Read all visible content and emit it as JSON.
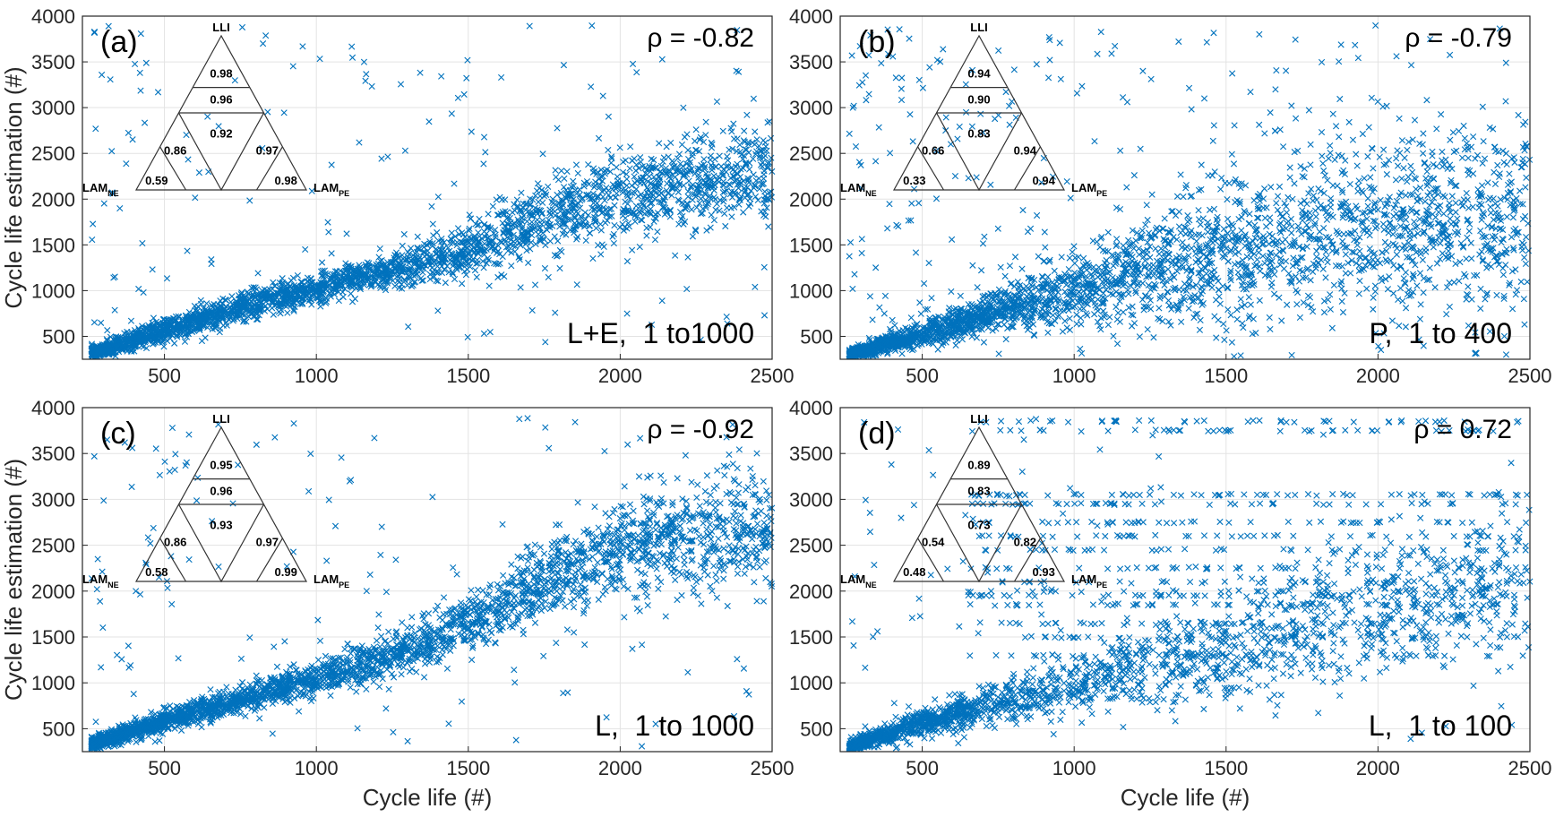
{
  "colors": {
    "marker": "#0072BD",
    "grid": "#e3e3e3",
    "axis": "#262626"
  },
  "chart_data": [
    {
      "type": "scatter",
      "panel": "(a)",
      "rho": "ρ = -0.82",
      "condition": "L+E,  1 to1000",
      "xlabel": "",
      "ylabel": "Cycle life estimation (#)",
      "xlim": [
        230,
        2500
      ],
      "ylim": [
        250,
        4000
      ],
      "xticks": [
        500,
        1000,
        1500,
        2000,
        2500
      ],
      "yticks": [
        500,
        1000,
        1500,
        2000,
        2500,
        3000,
        3500,
        4000
      ],
      "trend": {
        "points": [
          [
            260,
            320
          ],
          [
            500,
            560
          ],
          [
            750,
            820
          ],
          [
            1000,
            1030
          ],
          [
            1250,
            1230
          ],
          [
            1500,
            1420
          ],
          [
            1750,
            1800
          ],
          [
            2000,
            2050
          ],
          [
            2500,
            2300
          ]
        ],
        "spread": [
          60,
          120,
          140,
          150,
          180,
          260,
          380,
          450,
          500
        ],
        "outlier_frac": 0.06,
        "n": 3000
      },
      "triangle": {
        "title": "LLI",
        "left": "LAM",
        "left_sub": "NE",
        "right": "LAM",
        "right_sub": "PE",
        "values": {
          "top1": "0.98",
          "top2": "0.96",
          "center": "0.92",
          "left_inner": "0.86",
          "right_inner": "0.97",
          "left_corner": "0.59",
          "right_corner": "0.98"
        }
      }
    },
    {
      "type": "scatter",
      "panel": "(b)",
      "rho": "ρ = -0.79",
      "condition": "P,  1 to 400",
      "xlabel": "",
      "ylabel": "",
      "xlim": [
        230,
        2500
      ],
      "ylim": [
        250,
        4000
      ],
      "xticks": [
        500,
        1000,
        1500,
        2000,
        2500
      ],
      "yticks": [
        500,
        1000,
        1500,
        2000,
        2500,
        3000,
        3500,
        4000
      ],
      "trend": {
        "points": [
          [
            260,
            300
          ],
          [
            500,
            520
          ],
          [
            750,
            780
          ],
          [
            1000,
            1000
          ],
          [
            1250,
            1250
          ],
          [
            1500,
            1400
          ],
          [
            1750,
            1550
          ],
          [
            2000,
            1700
          ],
          [
            2500,
            1900
          ]
        ],
        "spread": [
          60,
          120,
          200,
          350,
          600,
          750,
          800,
          850,
          900
        ],
        "outlier_frac": 0.1,
        "n": 3000
      },
      "triangle": {
        "title": "LLI",
        "left": "LAM",
        "left_sub": "NE",
        "right": "LAM",
        "right_sub": "PE",
        "values": {
          "top1": "0.94",
          "top2": "0.90",
          "center": "0.83",
          "left_inner": "0.66",
          "right_inner": "0.94",
          "left_corner": "0.33",
          "right_corner": "0.94"
        }
      }
    },
    {
      "type": "scatter",
      "panel": "(c)",
      "rho": "ρ = -0.92",
      "condition": "L,  1 to 1000",
      "xlabel": "Cycle life (#)",
      "ylabel": "Cycle life estimation (#)",
      "xlim": [
        230,
        2500
      ],
      "ylim": [
        250,
        4000
      ],
      "xticks": [
        500,
        1000,
        1500,
        2000,
        2500
      ],
      "yticks": [
        500,
        1000,
        1500,
        2000,
        2500,
        3000,
        3500,
        4000
      ],
      "trend": {
        "points": [
          [
            260,
            330
          ],
          [
            500,
            580
          ],
          [
            750,
            830
          ],
          [
            1000,
            1050
          ],
          [
            1250,
            1300
          ],
          [
            1500,
            1650
          ],
          [
            1750,
            2100
          ],
          [
            2000,
            2500
          ],
          [
            2500,
            2700
          ]
        ],
        "spread": [
          60,
          110,
          130,
          160,
          220,
          300,
          420,
          500,
          550
        ],
        "outlier_frac": 0.06,
        "n": 3000
      },
      "triangle": {
        "title": "LLI",
        "left": "LAM",
        "left_sub": "NE",
        "right": "LAM",
        "right_sub": "PE",
        "values": {
          "top1": "0.95",
          "top2": "0.96",
          "center": "0.93",
          "left_inner": "0.86",
          "right_inner": "0.97",
          "left_corner": "0.58",
          "right_corner": "0.99"
        }
      }
    },
    {
      "type": "scatter",
      "panel": "(d)",
      "rho": "ρ = 0.72",
      "condition": "L,  1 to 100",
      "xlabel": "Cycle life (#)",
      "ylabel": "",
      "xlim": [
        230,
        2500
      ],
      "ylim": [
        250,
        4000
      ],
      "xticks": [
        500,
        1000,
        1500,
        2000,
        2500
      ],
      "yticks": [
        500,
        1000,
        1500,
        2000,
        2500,
        3000,
        3500,
        4000
      ],
      "trend": {
        "points": [
          [
            260,
            300
          ],
          [
            500,
            560
          ],
          [
            750,
            800
          ],
          [
            1000,
            1000
          ],
          [
            1250,
            1150
          ],
          [
            1500,
            1300
          ],
          [
            1750,
            1500
          ],
          [
            2000,
            1800
          ],
          [
            2500,
            2100
          ]
        ],
        "spread": [
          60,
          130,
          200,
          300,
          400,
          500,
          600,
          700,
          800
        ],
        "outlier_frac": 0.05,
        "n": 2600
      },
      "bands": [
        3850,
        3750,
        3050,
        2950,
        2750,
        2600,
        2450,
        2250,
        2100,
        2000,
        1950,
        1850,
        1650,
        1500,
        1300
      ],
      "triangle": {
        "title": "LLI",
        "left": "LAM",
        "left_sub": "NE",
        "right": "LAM",
        "right_sub": "PE",
        "values": {
          "top1": "0.89",
          "top2": "0.83",
          "center": "0.73",
          "left_inner": "0.54",
          "right_inner": "0.82",
          "left_corner": "0.48",
          "right_corner": "0.93"
        }
      }
    }
  ]
}
